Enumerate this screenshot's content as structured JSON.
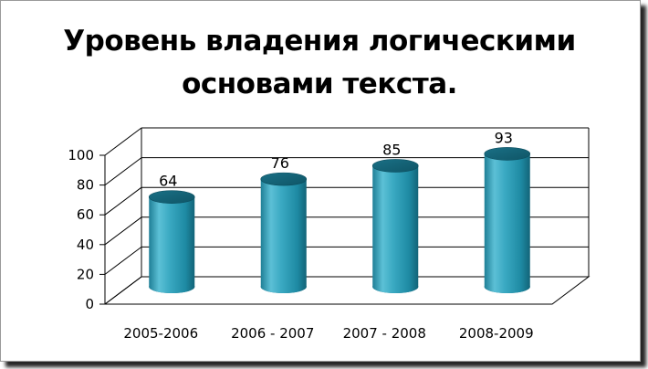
{
  "chart_data": {
    "type": "bar",
    "style": "3d-cylinder",
    "title": "Уровень владения логическими основами текста.",
    "categories": [
      "2005-2006",
      "2006 - 2007",
      "2007 - 2008",
      "2008-2009"
    ],
    "values": [
      64,
      76,
      85,
      93
    ],
    "data_labels": [
      "64",
      "76",
      "85",
      "93"
    ],
    "ylim": [
      0,
      100
    ],
    "yticks": [
      "0",
      "20",
      "40",
      "60",
      "80",
      "100"
    ],
    "grid": true,
    "legend": "none",
    "colors": {
      "bar": "#2b9cb6",
      "bar_light": "#8fd6e6",
      "bar_dark": "#126a80",
      "grid": "#000000"
    }
  }
}
